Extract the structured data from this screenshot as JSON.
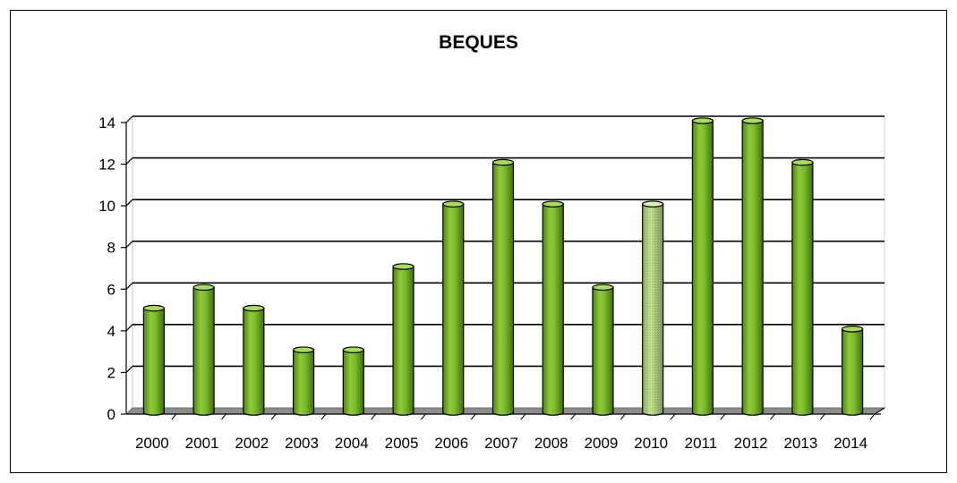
{
  "chart_data": {
    "type": "bar",
    "title": "BEQUES",
    "categories": [
      "2000",
      "2001",
      "2002",
      "2003",
      "2004",
      "2005",
      "2006",
      "2007",
      "2008",
      "2009",
      "2010",
      "2011",
      "2012",
      "2013",
      "2014"
    ],
    "values": [
      5,
      6,
      5,
      3,
      3,
      7,
      10,
      12,
      10,
      6,
      10,
      14,
      14,
      12,
      4
    ],
    "highlighted_category": "2010",
    "xlabel": "",
    "ylabel": "",
    "ylim": [
      0,
      14
    ],
    "yticks": [
      0,
      2,
      4,
      6,
      8,
      10,
      12,
      14
    ],
    "grid": true,
    "legend": "none",
    "bar_shape": "3d-cylinder",
    "colors": {
      "bar": "#7dbd2a",
      "bar_dark": "#3f6d0c",
      "bar_light": "#a9dd55",
      "highlight_bar": "#b8e07a",
      "floor": "#8c8c8c",
      "grid": "#000000"
    }
  }
}
